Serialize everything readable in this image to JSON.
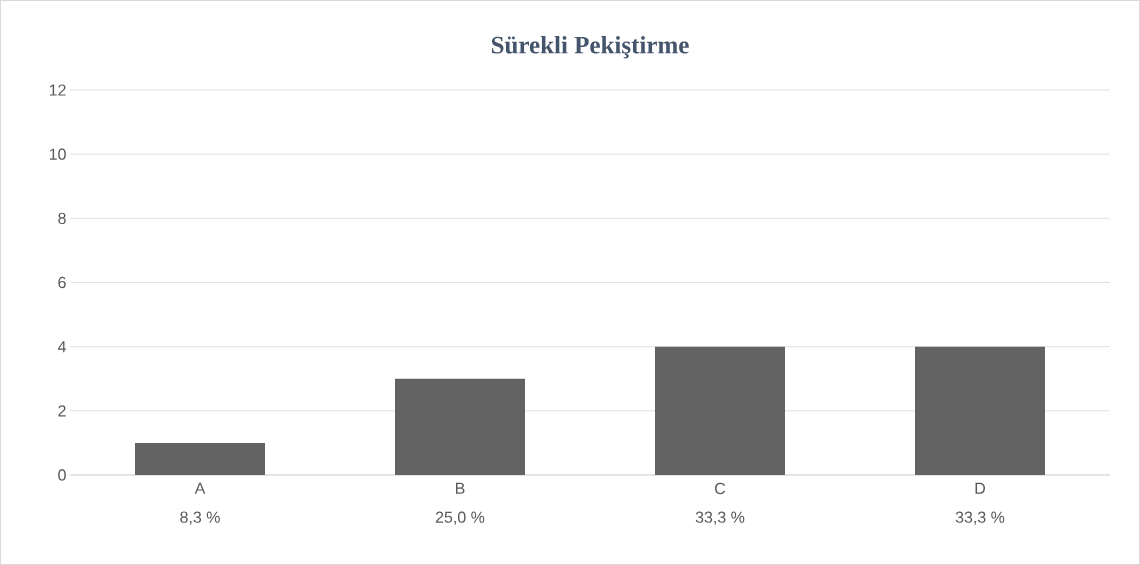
{
  "chart_data": {
    "type": "bar",
    "title": "Sürekli Pekiştirme",
    "categories": [
      "A",
      "B",
      "C",
      "D"
    ],
    "values": [
      1,
      3,
      4,
      4
    ],
    "annotations": [
      "8,3 %",
      "25,0 %",
      "33,3 %",
      "33,3 %"
    ],
    "color": "#636363",
    "ylim": [
      0,
      12
    ],
    "yticks": [
      0,
      2,
      4,
      6,
      8,
      10,
      12
    ],
    "grid": "y"
  }
}
